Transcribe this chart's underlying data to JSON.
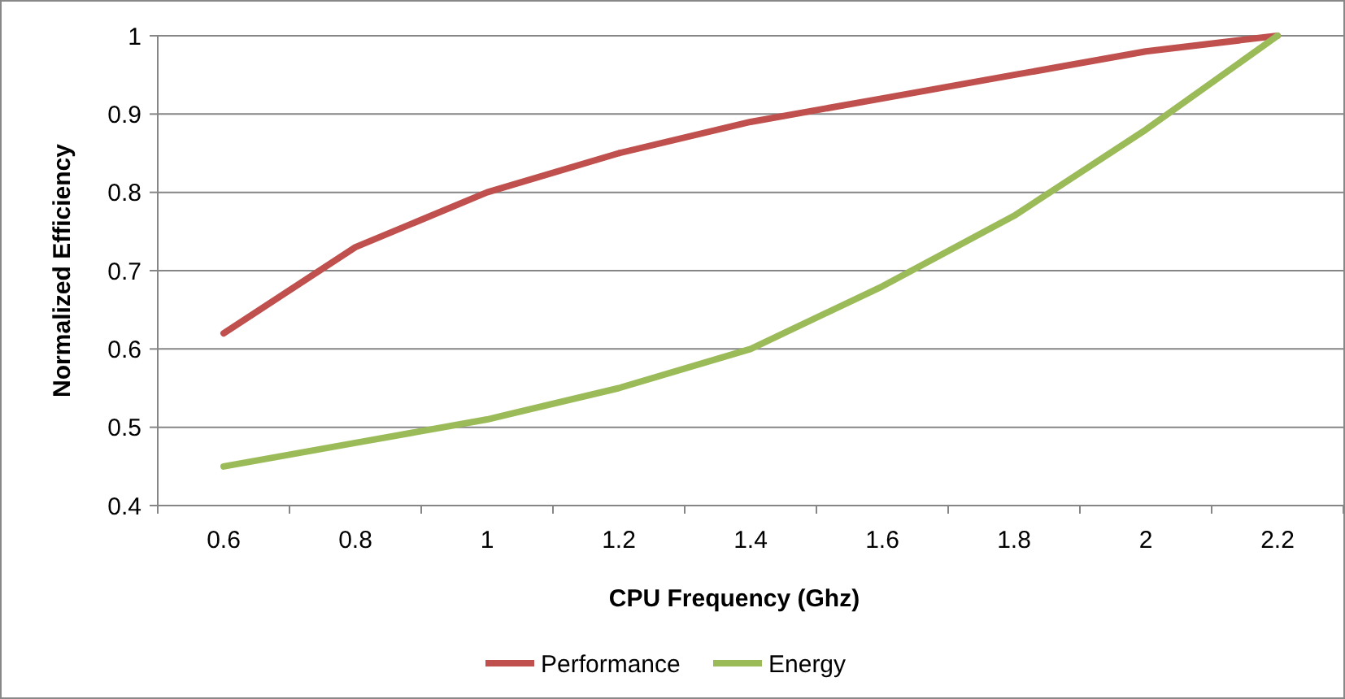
{
  "chart_data": {
    "type": "line",
    "xlabel": "CPU Frequency  (Ghz)",
    "ylabel": "Normalized Efficiency",
    "categories": [
      "0.6",
      "0.8",
      "1",
      "1.2",
      "1.4",
      "1.6",
      "1.8",
      "2",
      "2.2"
    ],
    "series": [
      {
        "name": "Performance",
        "color": "#c0504d",
        "values": [
          0.62,
          0.73,
          0.8,
          0.85,
          0.89,
          0.92,
          0.95,
          0.98,
          1.0
        ]
      },
      {
        "name": "Energy",
        "color": "#9bbb59",
        "values": [
          0.45,
          0.48,
          0.51,
          0.55,
          0.6,
          0.68,
          0.77,
          0.88,
          1.0
        ]
      }
    ],
    "ylim": [
      0.4,
      1
    ],
    "yticks": [
      0.4,
      0.5,
      0.6,
      0.7,
      0.8,
      0.9,
      1
    ],
    "grid": "y",
    "legend": "bottom",
    "marker": "none",
    "line_style": "solid"
  }
}
